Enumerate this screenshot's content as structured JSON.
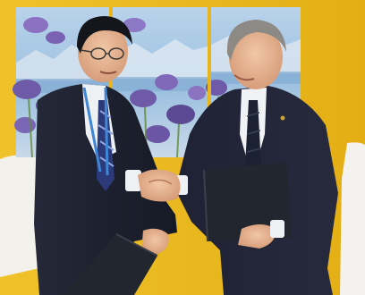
{
  "photo": {
    "scene": "handshake-agreement-signing",
    "colors": {
      "wall_yellow": "#e8b61c",
      "panel_sky": "#a8c8e4",
      "flower_purple": "#6f5aa8",
      "suit_navy": "#1c2233",
      "shirt_white": "#eef1f4",
      "folder_dark": "#22262e",
      "lanyard_blue": "#3f86d6"
    }
  }
}
